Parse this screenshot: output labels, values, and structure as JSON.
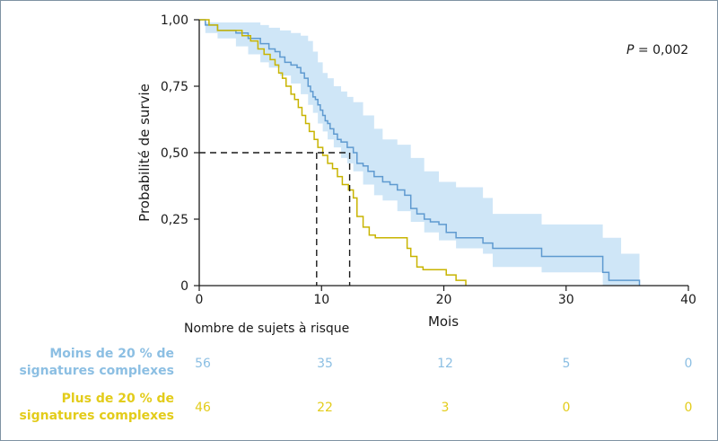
{
  "colors": {
    "series1": "#5f9ad0",
    "series1_band": "#cfe6f7",
    "series2": "#c8b400",
    "series1_label": "#8cbfe3",
    "series2_label": "#e3cc1a",
    "axis": "#1a1a1a"
  },
  "chart_data": {
    "type": "line",
    "subtype": "kaplan-meier",
    "xlabel": "Mois",
    "ylabel": "Probabilité de survie",
    "xlim": [
      0,
      40
    ],
    "ylim": [
      0,
      1
    ],
    "x_ticks": [
      0,
      10,
      20,
      30,
      40
    ],
    "x_tick_labels": [
      "0",
      "10",
      "20",
      "30",
      "40"
    ],
    "y_ticks": [
      0,
      0.25,
      0.5,
      0.75,
      1
    ],
    "y_tick_labels": [
      "0",
      "0,25",
      "0,50",
      "0,75",
      "1,00"
    ],
    "annotation": {
      "p_prefix": "P",
      "p_suffix": " = 0,002"
    },
    "median_line": {
      "y": 0.5,
      "x_values": [
        9.6,
        12.3
      ]
    },
    "series": [
      {
        "group": "moins",
        "style": "step-with-ci",
        "points": [
          [
            0,
            1.0
          ],
          [
            0.5,
            0.98
          ],
          [
            1.5,
            0.96
          ],
          [
            3,
            0.95
          ],
          [
            4,
            0.93
          ],
          [
            5,
            0.91
          ],
          [
            5.7,
            0.89
          ],
          [
            6.2,
            0.88
          ],
          [
            6.6,
            0.86
          ],
          [
            7,
            0.84
          ],
          [
            7.5,
            0.83
          ],
          [
            8,
            0.82
          ],
          [
            8.3,
            0.8
          ],
          [
            8.6,
            0.78
          ],
          [
            8.9,
            0.75
          ],
          [
            9.1,
            0.73
          ],
          [
            9.3,
            0.71
          ],
          [
            9.5,
            0.7
          ],
          [
            9.7,
            0.68
          ],
          [
            9.9,
            0.66
          ],
          [
            10.1,
            0.64
          ],
          [
            10.3,
            0.62
          ],
          [
            10.5,
            0.61
          ],
          [
            10.7,
            0.59
          ],
          [
            11,
            0.57
          ],
          [
            11.3,
            0.55
          ],
          [
            11.6,
            0.54
          ],
          [
            12.1,
            0.52
          ],
          [
            12.6,
            0.5
          ],
          [
            12.9,
            0.46
          ],
          [
            13.4,
            0.45
          ],
          [
            13.8,
            0.43
          ],
          [
            14.3,
            0.41
          ],
          [
            15.0,
            0.39
          ],
          [
            15.6,
            0.38
          ],
          [
            16.2,
            0.36
          ],
          [
            16.8,
            0.34
          ],
          [
            17.3,
            0.29
          ],
          [
            17.8,
            0.27
          ],
          [
            18.4,
            0.25
          ],
          [
            18.9,
            0.24
          ],
          [
            19.6,
            0.23
          ],
          [
            20.2,
            0.2
          ],
          [
            21.0,
            0.18
          ],
          [
            23.2,
            0.16
          ],
          [
            24.0,
            0.14
          ],
          [
            28.0,
            0.11
          ],
          [
            33.0,
            0.05
          ],
          [
            33.5,
            0.02
          ],
          [
            34.5,
            0.02
          ],
          [
            36.0,
            0.0
          ]
        ],
        "band_points": [
          [
            0,
            1.0,
            1.0
          ],
          [
            0.5,
            0.99,
            0.95
          ],
          [
            1.5,
            0.99,
            0.93
          ],
          [
            3,
            0.99,
            0.9
          ],
          [
            4,
            0.99,
            0.87
          ],
          [
            5,
            0.98,
            0.84
          ],
          [
            5.7,
            0.97,
            0.82
          ],
          [
            6.6,
            0.96,
            0.79
          ],
          [
            7.5,
            0.95,
            0.76
          ],
          [
            8.3,
            0.94,
            0.72
          ],
          [
            8.9,
            0.92,
            0.68
          ],
          [
            9.3,
            0.88,
            0.65
          ],
          [
            9.7,
            0.84,
            0.61
          ],
          [
            10.1,
            0.8,
            0.58
          ],
          [
            10.5,
            0.78,
            0.55
          ],
          [
            11.0,
            0.75,
            0.52
          ],
          [
            11.6,
            0.73,
            0.48
          ],
          [
            12.1,
            0.71,
            0.46
          ],
          [
            12.6,
            0.69,
            0.43
          ],
          [
            13.4,
            0.64,
            0.38
          ],
          [
            14.3,
            0.59,
            0.34
          ],
          [
            15.0,
            0.55,
            0.32
          ],
          [
            16.2,
            0.53,
            0.28
          ],
          [
            17.3,
            0.48,
            0.24
          ],
          [
            18.4,
            0.43,
            0.2
          ],
          [
            19.6,
            0.39,
            0.17
          ],
          [
            21.0,
            0.37,
            0.14
          ],
          [
            23.2,
            0.33,
            0.12
          ],
          [
            24.0,
            0.27,
            0.07
          ],
          [
            28.0,
            0.23,
            0.05
          ],
          [
            33.0,
            0.18,
            0.0
          ],
          [
            34.5,
            0.12,
            0.0
          ],
          [
            36.0,
            0.12,
            0.0
          ]
        ]
      },
      {
        "group": "plus",
        "style": "step",
        "points": [
          [
            0,
            1.0
          ],
          [
            0.8,
            0.98
          ],
          [
            1.5,
            0.96
          ],
          [
            3.5,
            0.94
          ],
          [
            4.2,
            0.92
          ],
          [
            4.8,
            0.89
          ],
          [
            5.3,
            0.87
          ],
          [
            5.8,
            0.85
          ],
          [
            6.2,
            0.83
          ],
          [
            6.5,
            0.8
          ],
          [
            6.8,
            0.78
          ],
          [
            7.1,
            0.75
          ],
          [
            7.5,
            0.72
          ],
          [
            7.8,
            0.7
          ],
          [
            8.1,
            0.67
          ],
          [
            8.4,
            0.64
          ],
          [
            8.7,
            0.61
          ],
          [
            9.0,
            0.58
          ],
          [
            9.4,
            0.55
          ],
          [
            9.7,
            0.52
          ],
          [
            10.1,
            0.49
          ],
          [
            10.5,
            0.46
          ],
          [
            10.9,
            0.44
          ],
          [
            11.3,
            0.41
          ],
          [
            11.7,
            0.38
          ],
          [
            12.2,
            0.36
          ],
          [
            12.6,
            0.33
          ],
          [
            12.9,
            0.26
          ],
          [
            13.4,
            0.22
          ],
          [
            13.9,
            0.19
          ],
          [
            14.4,
            0.18
          ],
          [
            17.0,
            0.14
          ],
          [
            17.3,
            0.11
          ],
          [
            17.8,
            0.07
          ],
          [
            18.3,
            0.06
          ],
          [
            20.2,
            0.04
          ],
          [
            21.0,
            0.02
          ],
          [
            21.8,
            0.0
          ]
        ]
      }
    ]
  },
  "risk_table": {
    "title": "Nombre de sujets à risque",
    "groups": [
      {
        "label_line1": "Moins de 20 % de",
        "label_line2": "signatures complexes",
        "counts": [
          "56",
          "35",
          "12",
          "5",
          "0"
        ]
      },
      {
        "label_line1": "Plus de 20 % de",
        "label_line2": "signatures complexes",
        "counts": [
          "46",
          "22",
          "3",
          "0",
          "0"
        ]
      }
    ]
  }
}
